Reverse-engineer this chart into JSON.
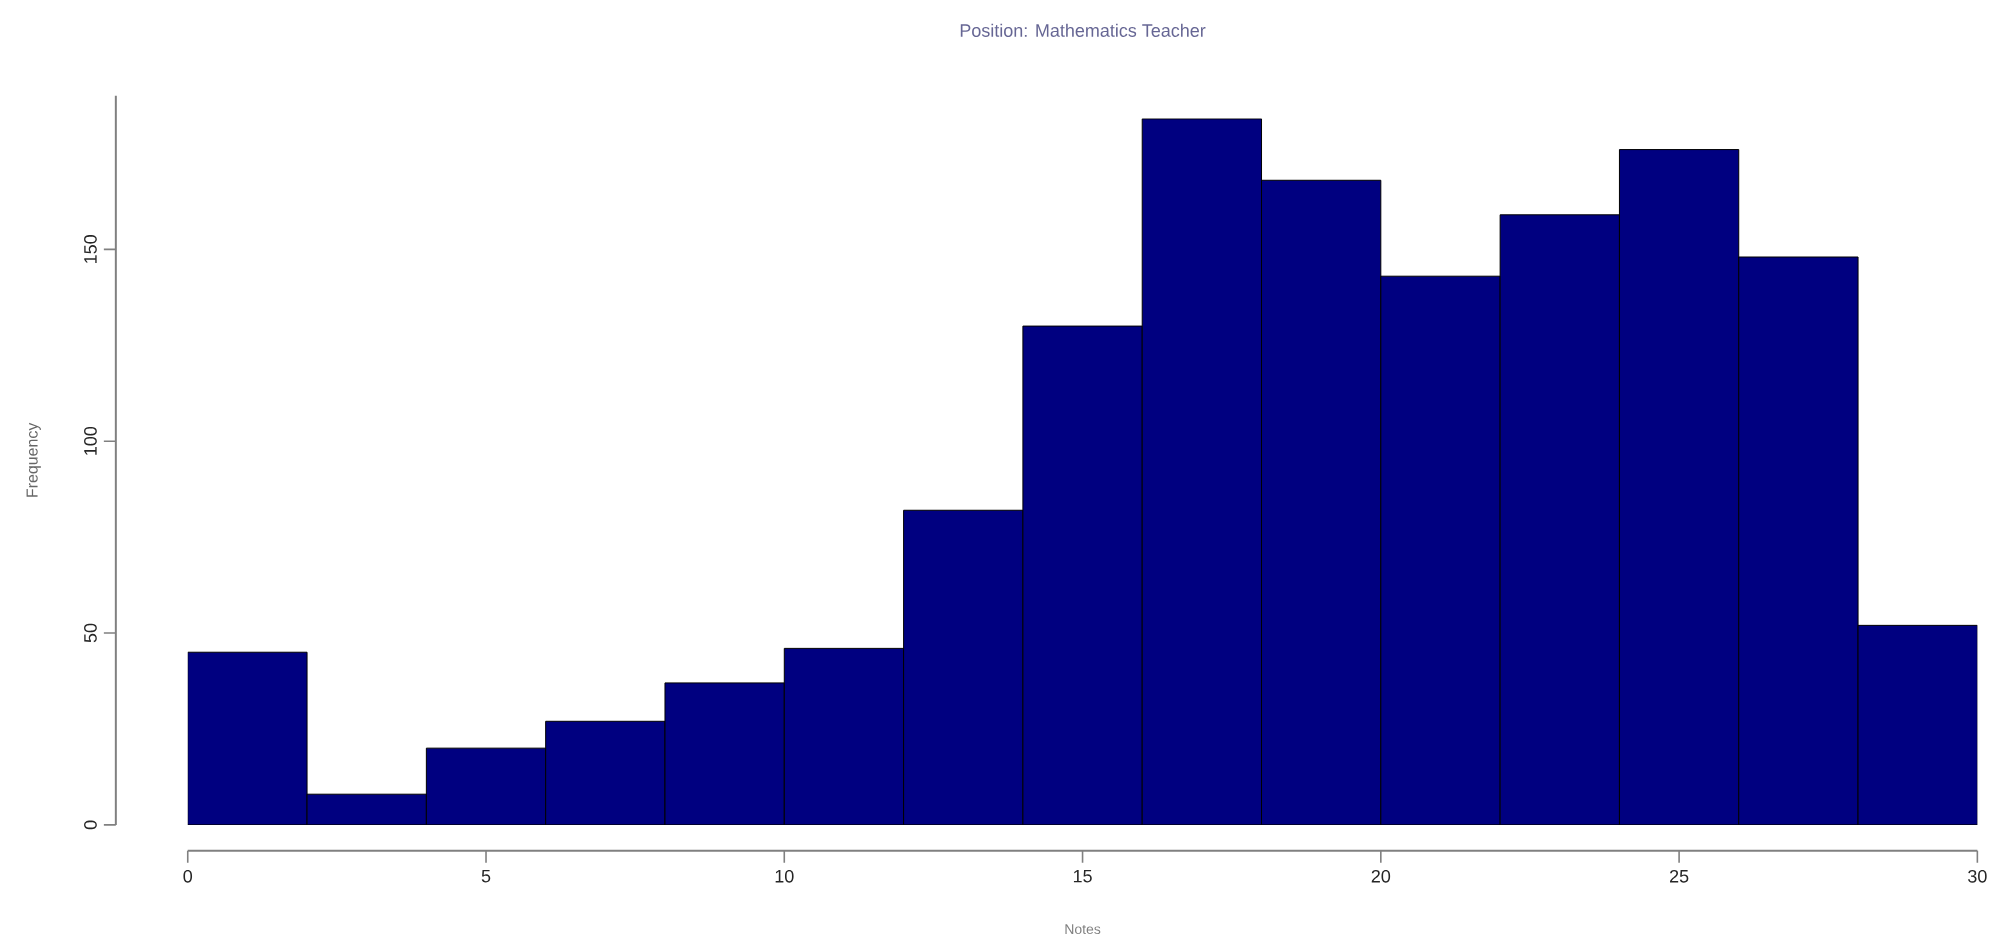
{
  "chart_data": {
    "type": "histogram",
    "title": "Position: Mathematics Teacher",
    "xlabel": "Notes",
    "ylabel": "Frequency",
    "bins": [
      0,
      2,
      4,
      6,
      8,
      10,
      12,
      14,
      16,
      18,
      20,
      22,
      24,
      26,
      28,
      30
    ],
    "values": [
      45,
      8,
      20,
      27,
      37,
      46,
      82,
      130,
      184,
      168,
      143,
      159,
      176,
      148,
      52
    ],
    "color": "#000080",
    "xlim": [
      0,
      30
    ],
    "ylim": [
      0,
      190
    ],
    "xticks": [
      0,
      5,
      10,
      15,
      20,
      25,
      30
    ],
    "yticks": [
      0,
      50,
      100,
      150
    ],
    "grid": false
  }
}
